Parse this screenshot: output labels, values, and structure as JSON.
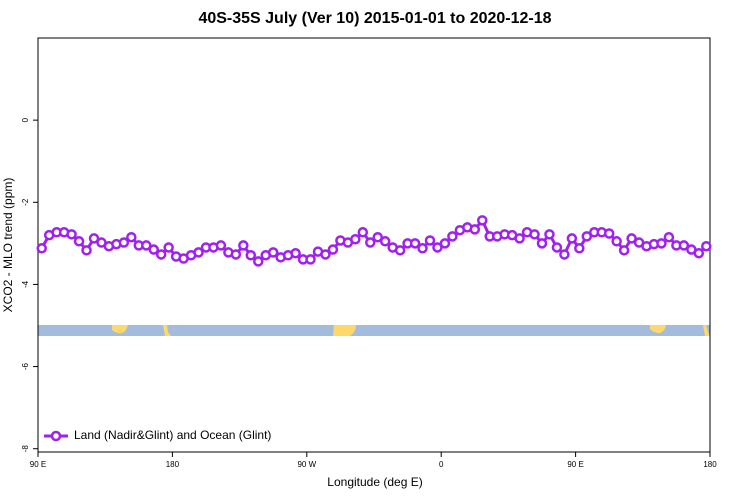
{
  "chart_data": {
    "type": "line",
    "title": "40S-35S July (Ver 10)   2015-01-01 to 2020-12-18",
    "x_label": "Longitude (deg E)",
    "y_label": "XCO2 - MLO trend (ppm)",
    "x": [
      92.5,
      97.5,
      102.5,
      107.5,
      112.5,
      117.5,
      122.5,
      127.5,
      132.5,
      137.5,
      142.5,
      147.5,
      152.5,
      157.5,
      162.5,
      167.5,
      172.5,
      177.5,
      182.5,
      187.5,
      192.5,
      197.5,
      202.5,
      207.5,
      212.5,
      217.5,
      222.5,
      227.5,
      232.5,
      237.5,
      242.5,
      247.5,
      252.5,
      257.5,
      262.5,
      267.5,
      272.5,
      277.5,
      282.5,
      287.5,
      292.5,
      297.5,
      302.5,
      307.5,
      312.5,
      317.5,
      322.5,
      327.5,
      332.5,
      337.5,
      342.5,
      347.5,
      352.5,
      357.5,
      362.5,
      367.5,
      372.5,
      377.5,
      382.5,
      387.5,
      392.5,
      397.5,
      402.5,
      407.5,
      412.5,
      417.5,
      422.5,
      427.5,
      432.5,
      437.5,
      442.5,
      447.5,
      452.5,
      457.5,
      462.5,
      467.5,
      472.5,
      477.5,
      482.5,
      487.5,
      492.5,
      497.5,
      502.5,
      507.5,
      512.5,
      517.5,
      522.5,
      527.5,
      532.5,
      537.5
    ],
    "series": [
      {
        "name": "Land (Nadir&Glint) and Ocean (Glint)",
        "color": "#a020f0",
        "values": [
          -3.12,
          -2.8,
          -2.73,
          -2.73,
          -2.78,
          -2.95,
          -3.17,
          -2.88,
          -2.98,
          -3.07,
          -3.02,
          -2.98,
          -2.85,
          -3.05,
          -3.05,
          -3.15,
          -3.27,
          -3.1,
          -3.32,
          -3.37,
          -3.29,
          -3.22,
          -3.1,
          -3.1,
          -3.05,
          -3.22,
          -3.27,
          -3.05,
          -3.29,
          -3.44,
          -3.29,
          -3.22,
          -3.34,
          -3.29,
          -3.24,
          -3.39,
          -3.39,
          -3.2,
          -3.27,
          -3.15,
          -2.93,
          -2.98,
          -2.9,
          -2.73,
          -2.98,
          -2.85,
          -2.95,
          -3.1,
          -3.17,
          -3.0,
          -3.0,
          -3.12,
          -2.93,
          -3.1,
          -3.0,
          -2.83,
          -2.68,
          -2.61,
          -2.66,
          -2.44,
          -2.83,
          -2.83,
          -2.78,
          -2.8,
          -2.88,
          -2.73,
          -2.78,
          -3.0,
          -2.78,
          -3.1,
          -3.27,
          -2.88,
          -3.12,
          -2.83,
          -2.73,
          -2.73,
          -2.76,
          -2.95,
          -3.17,
          -2.88,
          -2.98,
          -3.07,
          -3.02,
          -3.0,
          -2.85,
          -3.05,
          -3.05,
          -3.15,
          -3.24,
          -3.07
        ]
      }
    ],
    "xlim": [
      90,
      540
    ],
    "xticks": [
      {
        "value": 90,
        "label": "90 E"
      },
      180,
      {
        "value": 270,
        "label": "90 W"
      },
      {
        "value": 360,
        "label": "0"
      },
      {
        "value": 450,
        "label": "90 E"
      },
      {
        "value": 540,
        "label": "180"
      }
    ],
    "ylim": [
      -8.08,
      2.0
    ],
    "yticks": [
      0,
      -2,
      -4,
      -6,
      -8
    ],
    "legend": "bottom-left"
  }
}
